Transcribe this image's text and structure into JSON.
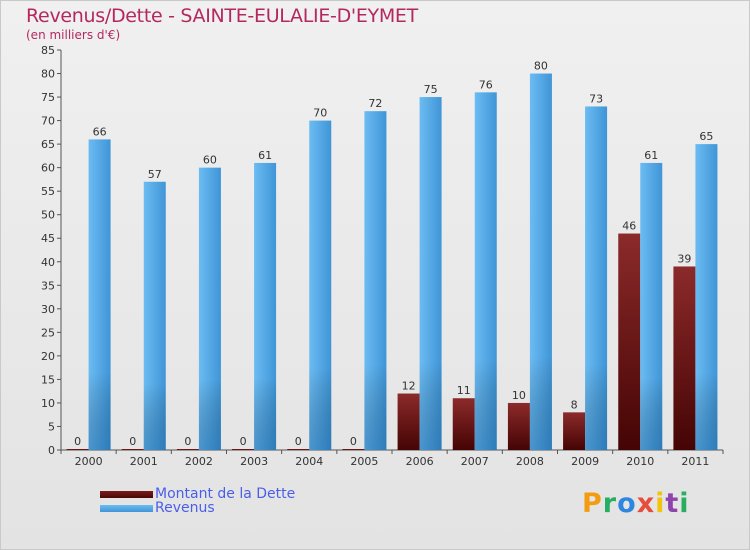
{
  "title": "Revenus/Dette - SAINTE-EULALIE-D'EYMET",
  "subtitle": "(en milliers d'€)",
  "brand": {
    "text": "Proxiti",
    "letters": [
      {
        "ch": "P",
        "color": "#f39c12"
      },
      {
        "ch": "r",
        "color": "#27ae60"
      },
      {
        "ch": "o",
        "color": "#2e86de"
      },
      {
        "ch": "x",
        "color": "#e74c3c"
      },
      {
        "ch": "i",
        "color": "#f1c40f"
      },
      {
        "ch": "t",
        "color": "#8e44ad"
      },
      {
        "ch": "i",
        "color": "#27ae60"
      }
    ]
  },
  "colors": {
    "dette": "#7b1a1a",
    "dette_dark": "#4a0606",
    "revenus": "#5aaeeb",
    "revenus_dark": "#2d80c2"
  },
  "chart_data": {
    "type": "bar",
    "title": "Revenus/Dette - SAINTE-EULALIE-D'EYMET",
    "ylabel": "(en milliers d'€)",
    "categories": [
      "2000",
      "2001",
      "2002",
      "2003",
      "2004",
      "2005",
      "2006",
      "2007",
      "2008",
      "2009",
      "2010",
      "2011"
    ],
    "series": [
      {
        "name": "Montant de la Dette",
        "values": [
          0,
          0,
          0,
          0,
          0,
          0,
          12,
          11,
          10,
          8,
          46,
          39
        ]
      },
      {
        "name": "Revenus",
        "values": [
          66,
          57,
          60,
          61,
          70,
          72,
          75,
          76,
          80,
          73,
          61,
          65
        ]
      }
    ],
    "ylim": [
      0,
      85
    ],
    "yticks": [
      "0",
      "5",
      "10",
      "15",
      "20",
      "25",
      "30",
      "35",
      "40",
      "45",
      "50",
      "55",
      "60",
      "65",
      "70",
      "75",
      "80",
      "85"
    ],
    "grid": false,
    "legend": "bottom-left"
  }
}
